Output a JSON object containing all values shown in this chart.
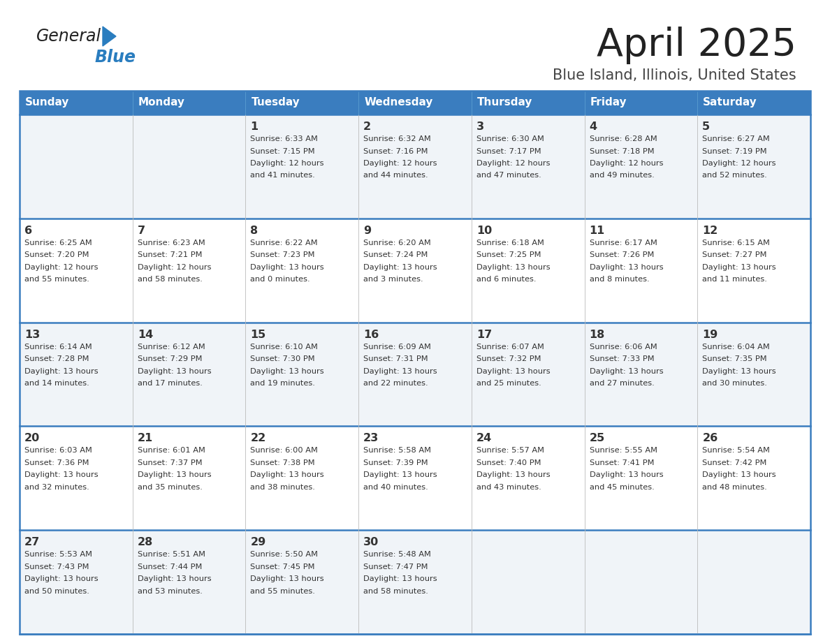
{
  "title": "April 2025",
  "subtitle": "Blue Island, Illinois, United States",
  "header_color": "#3a7dbf",
  "header_text_color": "#ffffff",
  "border_color": "#3a7dbf",
  "row_separator_color": "#3a7dbf",
  "text_color": "#333333",
  "days_of_week": [
    "Sunday",
    "Monday",
    "Tuesday",
    "Wednesday",
    "Thursday",
    "Friday",
    "Saturday"
  ],
  "calendar": [
    [
      {
        "day": "",
        "info": ""
      },
      {
        "day": "",
        "info": ""
      },
      {
        "day": "1",
        "info": "Sunrise: 6:33 AM\nSunset: 7:15 PM\nDaylight: 12 hours\nand 41 minutes."
      },
      {
        "day": "2",
        "info": "Sunrise: 6:32 AM\nSunset: 7:16 PM\nDaylight: 12 hours\nand 44 minutes."
      },
      {
        "day": "3",
        "info": "Sunrise: 6:30 AM\nSunset: 7:17 PM\nDaylight: 12 hours\nand 47 minutes."
      },
      {
        "day": "4",
        "info": "Sunrise: 6:28 AM\nSunset: 7:18 PM\nDaylight: 12 hours\nand 49 minutes."
      },
      {
        "day": "5",
        "info": "Sunrise: 6:27 AM\nSunset: 7:19 PM\nDaylight: 12 hours\nand 52 minutes."
      }
    ],
    [
      {
        "day": "6",
        "info": "Sunrise: 6:25 AM\nSunset: 7:20 PM\nDaylight: 12 hours\nand 55 minutes."
      },
      {
        "day": "7",
        "info": "Sunrise: 6:23 AM\nSunset: 7:21 PM\nDaylight: 12 hours\nand 58 minutes."
      },
      {
        "day": "8",
        "info": "Sunrise: 6:22 AM\nSunset: 7:23 PM\nDaylight: 13 hours\nand 0 minutes."
      },
      {
        "day": "9",
        "info": "Sunrise: 6:20 AM\nSunset: 7:24 PM\nDaylight: 13 hours\nand 3 minutes."
      },
      {
        "day": "10",
        "info": "Sunrise: 6:18 AM\nSunset: 7:25 PM\nDaylight: 13 hours\nand 6 minutes."
      },
      {
        "day": "11",
        "info": "Sunrise: 6:17 AM\nSunset: 7:26 PM\nDaylight: 13 hours\nand 8 minutes."
      },
      {
        "day": "12",
        "info": "Sunrise: 6:15 AM\nSunset: 7:27 PM\nDaylight: 13 hours\nand 11 minutes."
      }
    ],
    [
      {
        "day": "13",
        "info": "Sunrise: 6:14 AM\nSunset: 7:28 PM\nDaylight: 13 hours\nand 14 minutes."
      },
      {
        "day": "14",
        "info": "Sunrise: 6:12 AM\nSunset: 7:29 PM\nDaylight: 13 hours\nand 17 minutes."
      },
      {
        "day": "15",
        "info": "Sunrise: 6:10 AM\nSunset: 7:30 PM\nDaylight: 13 hours\nand 19 minutes."
      },
      {
        "day": "16",
        "info": "Sunrise: 6:09 AM\nSunset: 7:31 PM\nDaylight: 13 hours\nand 22 minutes."
      },
      {
        "day": "17",
        "info": "Sunrise: 6:07 AM\nSunset: 7:32 PM\nDaylight: 13 hours\nand 25 minutes."
      },
      {
        "day": "18",
        "info": "Sunrise: 6:06 AM\nSunset: 7:33 PM\nDaylight: 13 hours\nand 27 minutes."
      },
      {
        "day": "19",
        "info": "Sunrise: 6:04 AM\nSunset: 7:35 PM\nDaylight: 13 hours\nand 30 minutes."
      }
    ],
    [
      {
        "day": "20",
        "info": "Sunrise: 6:03 AM\nSunset: 7:36 PM\nDaylight: 13 hours\nand 32 minutes."
      },
      {
        "day": "21",
        "info": "Sunrise: 6:01 AM\nSunset: 7:37 PM\nDaylight: 13 hours\nand 35 minutes."
      },
      {
        "day": "22",
        "info": "Sunrise: 6:00 AM\nSunset: 7:38 PM\nDaylight: 13 hours\nand 38 minutes."
      },
      {
        "day": "23",
        "info": "Sunrise: 5:58 AM\nSunset: 7:39 PM\nDaylight: 13 hours\nand 40 minutes."
      },
      {
        "day": "24",
        "info": "Sunrise: 5:57 AM\nSunset: 7:40 PM\nDaylight: 13 hours\nand 43 minutes."
      },
      {
        "day": "25",
        "info": "Sunrise: 5:55 AM\nSunset: 7:41 PM\nDaylight: 13 hours\nand 45 minutes."
      },
      {
        "day": "26",
        "info": "Sunrise: 5:54 AM\nSunset: 7:42 PM\nDaylight: 13 hours\nand 48 minutes."
      }
    ],
    [
      {
        "day": "27",
        "info": "Sunrise: 5:53 AM\nSunset: 7:43 PM\nDaylight: 13 hours\nand 50 minutes."
      },
      {
        "day": "28",
        "info": "Sunrise: 5:51 AM\nSunset: 7:44 PM\nDaylight: 13 hours\nand 53 minutes."
      },
      {
        "day": "29",
        "info": "Sunrise: 5:50 AM\nSunset: 7:45 PM\nDaylight: 13 hours\nand 55 minutes."
      },
      {
        "day": "30",
        "info": "Sunrise: 5:48 AM\nSunset: 7:47 PM\nDaylight: 13 hours\nand 58 minutes."
      },
      {
        "day": "",
        "info": ""
      },
      {
        "day": "",
        "info": ""
      },
      {
        "day": "",
        "info": ""
      }
    ]
  ]
}
